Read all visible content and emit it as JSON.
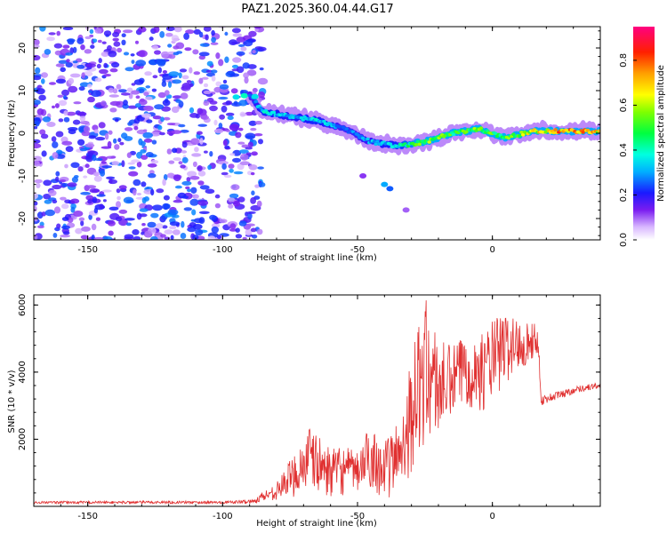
{
  "chart_data": [
    {
      "type": "heatmap",
      "title": "PAZ1.2025.360.04.44.G17",
      "xlabel": "Height of straight line (km)",
      "ylabel": "Frequency (Hz)",
      "xlim": [
        -170,
        40
      ],
      "ylim": [
        -25,
        25
      ],
      "xticks": [
        -150,
        -100,
        -50,
        0
      ],
      "yticks": [
        -20,
        -10,
        0,
        10,
        20
      ],
      "colorbar": {
        "label": "Normalized spectral amplitude",
        "range": [
          0,
          0.95
        ],
        "ticks": [
          "0.0",
          "0.2",
          "0.4",
          "0.6",
          "0.8"
        ],
        "tick_values": [
          0,
          0.2,
          0.4,
          0.6,
          0.8
        ]
      },
      "noise_region": {
        "x_range": [
          -170,
          -85
        ],
        "y_range": [
          -25,
          25
        ],
        "typical_amplitude": 0.15
      },
      "ridge": [
        {
          "x": -90,
          "f": 9,
          "amp": 0.3
        },
        {
          "x": -85,
          "f": 5,
          "amp": 0.4
        },
        {
          "x": -75,
          "f": 4,
          "amp": 0.35
        },
        {
          "x": -65,
          "f": 3,
          "amp": 0.4
        },
        {
          "x": -55,
          "f": 1,
          "amp": 0.3
        },
        {
          "x": -45,
          "f": -2,
          "amp": 0.35
        },
        {
          "x": -35,
          "f": -3,
          "amp": 0.4
        },
        {
          "x": -25,
          "f": -2,
          "amp": 0.6
        },
        {
          "x": -15,
          "f": 0,
          "amp": 0.55
        },
        {
          "x": -5,
          "f": 1,
          "amp": 0.6
        },
        {
          "x": 5,
          "f": -1,
          "amp": 0.55
        },
        {
          "x": 15,
          "f": 0.5,
          "amp": 0.7
        },
        {
          "x": 25,
          "f": 0.5,
          "amp": 0.85
        },
        {
          "x": 35,
          "f": 0.5,
          "amp": 0.8
        },
        {
          "x": 40,
          "f": 0.5,
          "amp": 0.7
        }
      ]
    },
    {
      "type": "line",
      "xlabel": "Height of straight line (km)",
      "ylabel": "SNR (10 * v/v)",
      "xlim": [
        -170,
        40
      ],
      "ylim": [
        0,
        6300
      ],
      "xticks": [
        -150,
        -100,
        -50,
        0
      ],
      "yticks": [
        2000,
        4000,
        6000
      ],
      "series": [
        {
          "name": "SNR",
          "color": "#e03030",
          "envelope": [
            {
              "x": -170,
              "low": 80,
              "high": 200
            },
            {
              "x": -120,
              "low": 80,
              "high": 220
            },
            {
              "x": -100,
              "low": 80,
              "high": 200
            },
            {
              "x": -88,
              "low": 80,
              "high": 300
            },
            {
              "x": -80,
              "low": 200,
              "high": 700
            },
            {
              "x": -72,
              "low": 300,
              "high": 1800
            },
            {
              "x": -68,
              "low": 400,
              "high": 2400
            },
            {
              "x": -60,
              "low": 300,
              "high": 1700
            },
            {
              "x": -55,
              "low": 300,
              "high": 1800
            },
            {
              "x": -50,
              "low": 400,
              "high": 1600
            },
            {
              "x": -45,
              "low": 500,
              "high": 2500
            },
            {
              "x": -40,
              "low": 200,
              "high": 1900
            },
            {
              "x": -35,
              "low": 300,
              "high": 2600
            },
            {
              "x": -30,
              "low": 1000,
              "high": 4500
            },
            {
              "x": -25,
              "low": 1800,
              "high": 6300
            },
            {
              "x": -20,
              "low": 2000,
              "high": 5000
            },
            {
              "x": -15,
              "low": 2500,
              "high": 4800
            },
            {
              "x": -10,
              "low": 3000,
              "high": 5200
            },
            {
              "x": -5,
              "low": 2800,
              "high": 5000
            },
            {
              "x": 0,
              "low": 3000,
              "high": 5600
            },
            {
              "x": 5,
              "low": 3600,
              "high": 5800
            },
            {
              "x": 10,
              "low": 4000,
              "high": 5600
            },
            {
              "x": 17,
              "low": 4500,
              "high": 5400
            },
            {
              "x": 18,
              "low": 3000,
              "high": 3300
            },
            {
              "x": 25,
              "low": 3200,
              "high": 3450
            },
            {
              "x": 32,
              "low": 3400,
              "high": 3600
            },
            {
              "x": 40,
              "low": 3500,
              "high": 3700
            }
          ]
        }
      ]
    }
  ]
}
